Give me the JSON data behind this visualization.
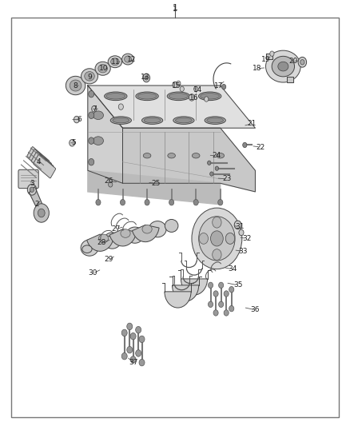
{
  "bg_color": "#ffffff",
  "border_color": "#555555",
  "text_color": "#222222",
  "line_color": "#444444",
  "label_data": [
    [
      1,
      0.5,
      0.98
    ],
    [
      2,
      0.105,
      0.52
    ],
    [
      3,
      0.09,
      0.57
    ],
    [
      4,
      0.11,
      0.62
    ],
    [
      5,
      0.21,
      0.665
    ],
    [
      6,
      0.225,
      0.72
    ],
    [
      7,
      0.27,
      0.745
    ],
    [
      8,
      0.215,
      0.8
    ],
    [
      9,
      0.255,
      0.82
    ],
    [
      10,
      0.295,
      0.84
    ],
    [
      11,
      0.33,
      0.855
    ],
    [
      12,
      0.375,
      0.862
    ],
    [
      13,
      0.415,
      0.82
    ],
    [
      14,
      0.565,
      0.79
    ],
    [
      15,
      0.505,
      0.8
    ],
    [
      16,
      0.555,
      0.77
    ],
    [
      17,
      0.625,
      0.8
    ],
    [
      18,
      0.735,
      0.84
    ],
    [
      19,
      0.76,
      0.862
    ],
    [
      20,
      0.84,
      0.858
    ],
    [
      21,
      0.72,
      0.71
    ],
    [
      22,
      0.745,
      0.655
    ],
    [
      23,
      0.65,
      0.58
    ],
    [
      24,
      0.62,
      0.635
    ],
    [
      25,
      0.445,
      0.57
    ],
    [
      26,
      0.31,
      0.575
    ],
    [
      27,
      0.33,
      0.462
    ],
    [
      28,
      0.29,
      0.43
    ],
    [
      29,
      0.31,
      0.39
    ],
    [
      30,
      0.265,
      0.358
    ],
    [
      31,
      0.685,
      0.468
    ],
    [
      32,
      0.705,
      0.44
    ],
    [
      33,
      0.695,
      0.41
    ],
    [
      34,
      0.665,
      0.368
    ],
    [
      35,
      0.68,
      0.33
    ],
    [
      36,
      0.73,
      0.272
    ],
    [
      37,
      0.38,
      0.148
    ]
  ],
  "leader_lines": [
    [
      0.1,
      0.52,
      0.12,
      0.53
    ],
    [
      0.08,
      0.57,
      0.095,
      0.575
    ],
    [
      0.1,
      0.62,
      0.115,
      0.612
    ],
    [
      0.195,
      0.665,
      0.24,
      0.66
    ],
    [
      0.2,
      0.72,
      0.255,
      0.718
    ],
    [
      0.255,
      0.745,
      0.295,
      0.74
    ],
    [
      0.72,
      0.71,
      0.685,
      0.7
    ],
    [
      0.745,
      0.655,
      0.71,
      0.655
    ],
    [
      0.65,
      0.58,
      0.62,
      0.582
    ],
    [
      0.62,
      0.635,
      0.59,
      0.635
    ],
    [
      0.445,
      0.57,
      0.415,
      0.572
    ],
    [
      0.31,
      0.575,
      0.34,
      0.572
    ],
    [
      0.685,
      0.468,
      0.66,
      0.47
    ],
    [
      0.705,
      0.44,
      0.67,
      0.443
    ],
    [
      0.695,
      0.41,
      0.66,
      0.415
    ],
    [
      0.665,
      0.368,
      0.635,
      0.372
    ],
    [
      0.68,
      0.33,
      0.645,
      0.335
    ],
    [
      0.73,
      0.272,
      0.695,
      0.278
    ],
    [
      0.38,
      0.148,
      0.36,
      0.16
    ]
  ]
}
